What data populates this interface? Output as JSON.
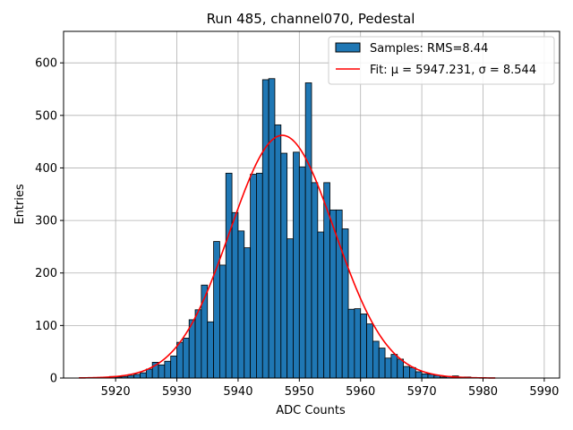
{
  "chart_data": {
    "type": "bar",
    "title": "Run 485, channel070, Pedestal",
    "xlabel": "ADC Counts",
    "ylabel": "Entries",
    "xlim": [
      5911.5,
      5992.5
    ],
    "ylim": [
      0,
      660
    ],
    "xticks": [
      5920,
      5930,
      5940,
      5950,
      5960,
      5970,
      5980,
      5990
    ],
    "yticks": [
      0,
      100,
      200,
      300,
      400,
      500,
      600
    ],
    "grid": true,
    "legend_position": "top-right",
    "histogram": {
      "name": "Samples: RMS=8.44",
      "color": "#1f77b4",
      "edge_color": "#000000",
      "bin_width": 1,
      "bin_start": 5914,
      "counts": [
        0,
        0,
        0,
        0,
        0,
        3,
        2,
        3,
        5,
        7,
        10,
        17,
        30,
        25,
        32,
        42,
        68,
        76,
        111,
        130,
        177,
        107,
        260,
        215,
        390,
        315,
        280,
        248,
        388,
        390,
        568,
        570,
        482,
        428,
        265,
        430,
        402,
        562,
        372,
        278,
        372,
        320,
        320,
        284,
        131,
        132,
        122,
        103,
        70,
        57,
        38,
        45,
        36,
        22,
        20,
        12,
        8,
        7,
        5,
        2,
        3,
        4,
        2,
        2,
        0,
        0,
        0,
        0,
        0
      ]
    },
    "fit": {
      "name": "Fit: μ = 5947.231, σ = 8.544",
      "color": "#ff0000",
      "mu": 5947.231,
      "sigma": 8.544,
      "amplitude": 462,
      "x_range": [
        5914,
        5982
      ]
    }
  }
}
